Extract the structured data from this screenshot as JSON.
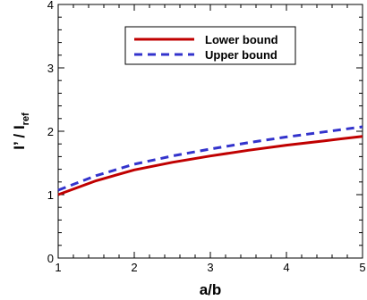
{
  "chart_data": {
    "type": "line",
    "xlabel": "a/b",
    "ylabel_main": "I’ / I",
    "ylabel_sub": "ref",
    "xlim": [
      1,
      5
    ],
    "ylim": [
      0,
      4
    ],
    "x_ticks": [
      1,
      2,
      3,
      4,
      5
    ],
    "y_ticks": [
      0,
      1,
      2,
      3,
      4
    ],
    "legend_position": "top-center",
    "series": [
      {
        "name": "Lower bound",
        "color": "#c00000",
        "dash": "solid",
        "x": [
          1,
          1.5,
          2,
          2.5,
          3,
          3.5,
          4,
          4.5,
          5
        ],
        "y": [
          1.0,
          1.22,
          1.39,
          1.51,
          1.61,
          1.7,
          1.78,
          1.85,
          1.92
        ]
      },
      {
        "name": "Upper bound",
        "color": "#3333cc",
        "dash": "dashed",
        "x": [
          1,
          1.5,
          2,
          2.5,
          3,
          3.5,
          4,
          4.5,
          5
        ],
        "y": [
          1.07,
          1.3,
          1.48,
          1.61,
          1.72,
          1.82,
          1.91,
          1.99,
          2.07
        ]
      }
    ]
  }
}
